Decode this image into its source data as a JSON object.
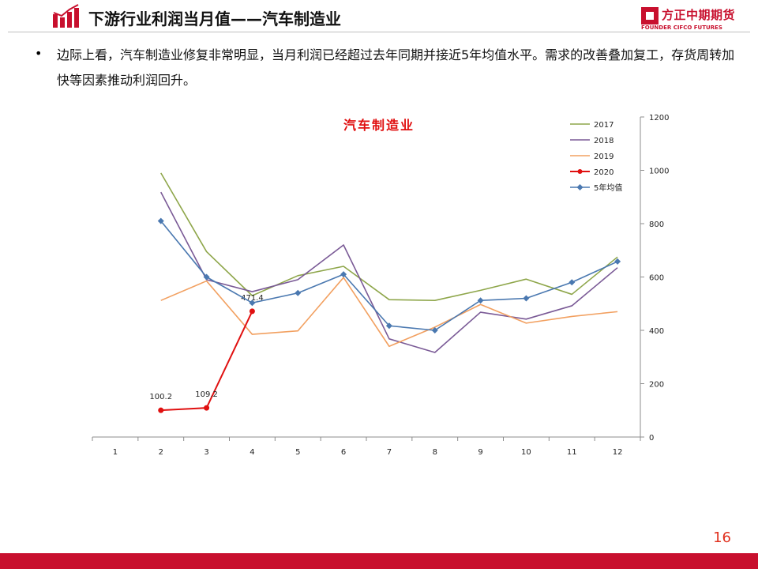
{
  "header": {
    "title": "下游行业利润当月值——汽车制造业",
    "brand_cn": "方正中期期货",
    "brand_en": "FOUNDER CIFCO FUTURES"
  },
  "body": {
    "bullet": "•",
    "text": "边际上看，汽车制造业修复非常明显，当月利润已经超过去年同期并接近5年均值水平。需求的改善叠加复工，存货周转加快等因素推动利润回升。"
  },
  "page_number": "16",
  "colors": {
    "brand_red": "#c8102e",
    "series_2017": "#8ea64a",
    "series_2018": "#7a5a96",
    "series_2019": "#f2a060",
    "series_2020": "#e01010",
    "series_avg": "#4a78b0"
  },
  "chart_data": {
    "type": "line",
    "title": "汽车制造业",
    "categories": [
      "1",
      "2",
      "3",
      "4",
      "5",
      "6",
      "7",
      "8",
      "9",
      "10",
      "11",
      "12"
    ],
    "ylim": [
      0,
      1200
    ],
    "yticks": [
      0,
      200,
      400,
      600,
      800,
      1000,
      1200
    ],
    "y_axis_side": "right",
    "legend_position": "top-right",
    "grid": false,
    "series": [
      {
        "name": "2017",
        "color": "#8ea64a",
        "marker": "none",
        "values": [
          null,
          990,
          695,
          530,
          605,
          640,
          515,
          512,
          550,
          592,
          535,
          675
        ]
      },
      {
        "name": "2018",
        "color": "#7a5a96",
        "marker": "none",
        "values": [
          null,
          918,
          590,
          545,
          590,
          720,
          368,
          317,
          468,
          442,
          492,
          635
        ]
      },
      {
        "name": "2019",
        "color": "#f2a060",
        "marker": "none",
        "values": [
          null,
          512,
          585,
          385,
          398,
          598,
          340,
          412,
          497,
          427,
          452,
          470
        ]
      },
      {
        "name": "2020",
        "color": "#e01010",
        "marker": "circle",
        "values": [
          null,
          100.2,
          109.2,
          471.4,
          null,
          null,
          null,
          null,
          null,
          null,
          null,
          null
        ],
        "data_labels": [
          "",
          "100.2",
          "109.2",
          "471.4",
          "",
          "",
          "",
          "",
          "",
          "",
          "",
          ""
        ]
      },
      {
        "name": "5年均值",
        "color": "#4a78b0",
        "marker": "diamond",
        "values": [
          null,
          810,
          600,
          503,
          540,
          610,
          417,
          400,
          512,
          520,
          580,
          658
        ]
      }
    ]
  }
}
